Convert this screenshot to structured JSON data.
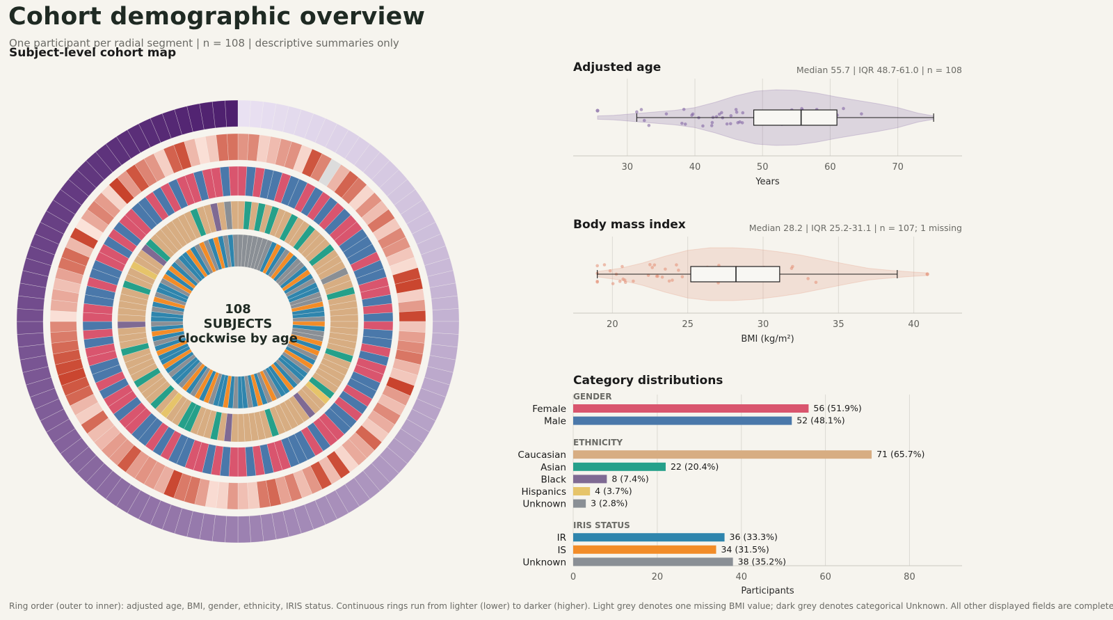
{
  "header": {
    "title": "Cohort demographic overview",
    "subtitle": "One participant per radial segment | n = 108 | descriptive summaries only"
  },
  "cohort_map": {
    "title": "Subject-level cohort map",
    "center_lines": [
      "108",
      "SUBJECTS",
      "clockwise by age"
    ]
  },
  "age_panel": {
    "title": "Adjusted age",
    "stats": "Median 55.7 | IQR 48.7-61.0 | n = 108"
  },
  "bmi_panel": {
    "title": "Body mass index",
    "stats": "Median 28.2 | IQR 25.2-31.1 | n = 107; 1 missing"
  },
  "category_panel": {
    "title": "Category distributions"
  },
  "footnote": "Ring order (outer to inner): adjusted age, BMI, gender, ethnicity, IRIS status. Continuous rings run from lighter (lower) to darker (higher). Light grey denotes one missing BMI value; dark grey denotes categorical Unknown. All other displayed fields are complete.",
  "colors": {
    "female": "#d9556e",
    "male": "#4a78aa",
    "caucasian": "#d7ad82",
    "asian": "#25a08a",
    "black": "#7f6a93",
    "hispanics": "#e6c46a",
    "unknown": "#8a8f95",
    "ir": "#2f85ad",
    "is": "#f28c28",
    "age_violin": "#7a5b9e",
    "bmi_violin": "#e38e74"
  },
  "chart_data": [
    {
      "type": "box",
      "panel": "age",
      "title": "Adjusted age",
      "xlabel": "Years",
      "xlim": [
        22,
        79.5
      ],
      "ticks": [
        30,
        40,
        50,
        60,
        70
      ],
      "summary": {
        "min": 31.4,
        "q1": 48.7,
        "median": 55.7,
        "q3": 61.0,
        "max": 75.3,
        "outlier": 25.6
      },
      "violin": {
        "x": [
          25.6,
          28,
          31,
          34,
          37,
          40,
          43,
          46,
          49,
          52,
          55,
          58,
          61,
          64,
          67,
          70,
          73,
          75.3
        ],
        "density": [
          0.06,
          0.08,
          0.14,
          0.2,
          0.26,
          0.36,
          0.55,
          0.78,
          0.95,
          1.0,
          0.98,
          0.88,
          0.74,
          0.62,
          0.5,
          0.36,
          0.16,
          0.06
        ]
      }
    },
    {
      "type": "box",
      "panel": "bmi",
      "title": "Body mass index",
      "xlabel": "BMI (kg/m²)",
      "xlim": [
        17.4,
        43.2
      ],
      "ticks": [
        20,
        25,
        30,
        35,
        40
      ],
      "summary": {
        "min": 19.0,
        "q1": 25.2,
        "median": 28.2,
        "q3": 31.1,
        "max": 38.9,
        "outlier": 40.9
      },
      "violin": {
        "x": [
          19,
          20.5,
          22,
          23.5,
          25,
          26.5,
          28,
          29.5,
          31,
          32.5,
          34,
          35.5,
          37,
          38.5,
          40,
          40.9
        ],
        "density": [
          0.1,
          0.22,
          0.42,
          0.68,
          0.9,
          1.0,
          1.0,
          0.95,
          0.85,
          0.72,
          0.55,
          0.38,
          0.22,
          0.14,
          0.08,
          0.05
        ]
      }
    },
    {
      "type": "bar",
      "panel": "categories",
      "title": "Category distributions",
      "xlabel": "Participants",
      "xlim": [
        0,
        92.5
      ],
      "ticks": [
        0,
        20,
        40,
        60,
        80
      ],
      "groups": [
        {
          "name": "GENDER",
          "items": [
            {
              "label": "Female",
              "value": 56,
              "pct": "(51.9%)",
              "color": "#d9556e"
            },
            {
              "label": "Male",
              "value": 52,
              "pct": "(48.1%)",
              "color": "#4a78aa"
            }
          ]
        },
        {
          "name": "ETHNICITY",
          "items": [
            {
              "label": "Caucasian",
              "value": 71,
              "pct": "(65.7%)",
              "color": "#d7ad82"
            },
            {
              "label": "Asian",
              "value": 22,
              "pct": "(20.4%)",
              "color": "#25a08a"
            },
            {
              "label": "Black",
              "value": 8,
              "pct": "(7.4%)",
              "color": "#7f6a93"
            },
            {
              "label": "Hispanics",
              "value": 4,
              "pct": "(3.7%)",
              "color": "#e6c46a"
            },
            {
              "label": "Unknown",
              "value": 3,
              "pct": "(2.8%)",
              "color": "#8a8f95"
            }
          ]
        },
        {
          "name": "IRIS STATUS",
          "items": [
            {
              "label": "IR",
              "value": 36,
              "pct": "(33.3%)",
              "color": "#2f85ad"
            },
            {
              "label": "IS",
              "value": 34,
              "pct": "(31.5%)",
              "color": "#f28c28"
            },
            {
              "label": "Unknown",
              "value": 38,
              "pct": "(35.2%)",
              "color": "#8a8f95"
            }
          ]
        }
      ]
    },
    {
      "type": "radial",
      "panel": "cohort_map",
      "title": "Subject-level cohort map",
      "n": 108,
      "rings": [
        "adjusted age",
        "BMI",
        "gender",
        "ethnicity",
        "IRIS status"
      ],
      "age_range": [
        25.6,
        75.3
      ],
      "bmi_range": [
        19.0,
        40.9
      ],
      "missing_bmi_index": 9,
      "gender": "FMFMMFMMFMFMFMFFMMMFMMFFMFMFMMFMFFMMFMFMMFFMFMMMFFMFMFFMFMFFMMFMFMMFFMFFMFMMFFMFMFFMMFMMFFMFMFFMMFMFMFFMFFMFF",
      "ethnicity": "CACACACCACCACCCACCCUCCACCCCCCCCCACCCCCAHCCBCCCCCACCCCCCBCACCCAACCHCACCCACCCCACCCBCCCCCACCHCCBACCCCCCCACCBCUC",
      "iris": "UUUUUUUISIUSIUUISRUIRUUSRRUSIUUSRSURSUIRURSIRUSURSIURRURSIRUSRSURSUIRURSIRSRURSIURRURSUIRUSRSRUIRSRUSURSIUR"
    }
  ]
}
